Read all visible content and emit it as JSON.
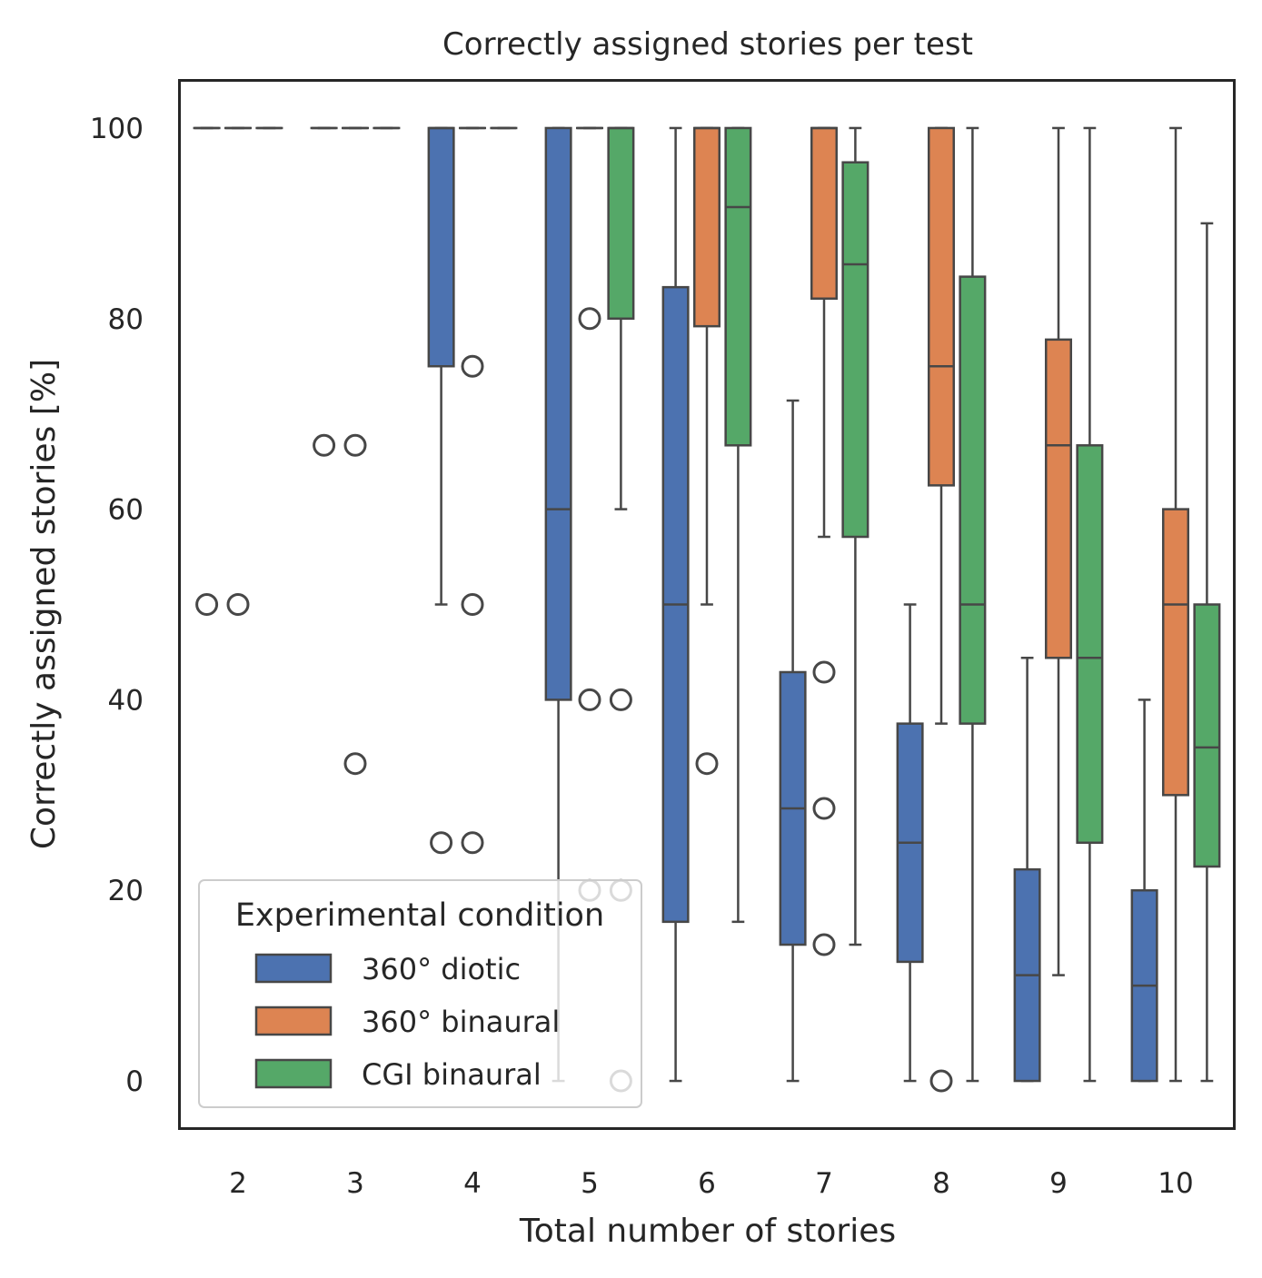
{
  "chart_data": {
    "type": "box",
    "title": "Correctly assigned stories per test",
    "xlabel": "Total number of stories",
    "ylabel": "Correctly assigned stories [%]",
    "ylim": [
      -5,
      105
    ],
    "yticks": [
      0,
      20,
      40,
      60,
      80,
      100
    ],
    "categories": [
      "2",
      "3",
      "4",
      "5",
      "6",
      "7",
      "8",
      "9",
      "10"
    ],
    "grid": false,
    "legend": {
      "title": "Experimental condition",
      "placement": "lower-left"
    },
    "series": [
      {
        "name": "360° diotic",
        "color": "#4c72b0",
        "boxes": [
          {
            "q1": 100,
            "median": 100,
            "q3": 100,
            "whislo": 100,
            "whishi": 100,
            "fliers": [
              50
            ]
          },
          {
            "q1": 100,
            "median": 100,
            "q3": 100,
            "whislo": 100,
            "whishi": 100,
            "fliers": [
              66.7
            ]
          },
          {
            "q1": 75,
            "median": 100,
            "q3": 100,
            "whislo": 50,
            "whishi": 100,
            "fliers": [
              25
            ]
          },
          {
            "q1": 40,
            "median": 60,
            "q3": 100,
            "whislo": 0,
            "whishi": 100,
            "fliers": []
          },
          {
            "q1": 16.7,
            "median": 50,
            "q3": 83.3,
            "whislo": 0,
            "whishi": 100,
            "fliers": []
          },
          {
            "q1": 14.3,
            "median": 28.6,
            "q3": 42.9,
            "whislo": 0,
            "whishi": 71.4,
            "fliers": []
          },
          {
            "q1": 12.5,
            "median": 25,
            "q3": 37.5,
            "whislo": 0,
            "whishi": 50,
            "fliers": []
          },
          {
            "q1": 0,
            "median": 11.1,
            "q3": 22.2,
            "whislo": 0,
            "whishi": 44.4,
            "fliers": []
          },
          {
            "q1": 0,
            "median": 10,
            "q3": 20,
            "whislo": 0,
            "whishi": 40,
            "fliers": []
          }
        ]
      },
      {
        "name": "360° binaural",
        "color": "#dd8452",
        "boxes": [
          {
            "q1": 100,
            "median": 100,
            "q3": 100,
            "whislo": 100,
            "whishi": 100,
            "fliers": [
              50
            ]
          },
          {
            "q1": 100,
            "median": 100,
            "q3": 100,
            "whislo": 100,
            "whishi": 100,
            "fliers": [
              66.7,
              33.3
            ]
          },
          {
            "q1": 100,
            "median": 100,
            "q3": 100,
            "whislo": 100,
            "whishi": 100,
            "fliers": [
              75,
              50,
              25
            ]
          },
          {
            "q1": 100,
            "median": 100,
            "q3": 100,
            "whislo": 100,
            "whishi": 100,
            "fliers": [
              80,
              40,
              20
            ]
          },
          {
            "q1": 79.2,
            "median": 100,
            "q3": 100,
            "whislo": 50,
            "whishi": 100,
            "fliers": [
              33.3
            ]
          },
          {
            "q1": 82.1,
            "median": 100,
            "q3": 100,
            "whislo": 57.1,
            "whishi": 100,
            "fliers": [
              42.9,
              28.6,
              14.3
            ]
          },
          {
            "q1": 62.5,
            "median": 75,
            "q3": 100,
            "whislo": 37.5,
            "whishi": 100,
            "fliers": [
              0
            ]
          },
          {
            "q1": 44.4,
            "median": 66.7,
            "q3": 77.8,
            "whislo": 11.1,
            "whishi": 100,
            "fliers": []
          },
          {
            "q1": 30,
            "median": 50,
            "q3": 60,
            "whislo": 0,
            "whishi": 100,
            "fliers": []
          }
        ]
      },
      {
        "name": "CGI binaural",
        "color": "#55a868",
        "boxes": [
          {
            "q1": 100,
            "median": 100,
            "q3": 100,
            "whislo": 100,
            "whishi": 100,
            "fliers": []
          },
          {
            "q1": 100,
            "median": 100,
            "q3": 100,
            "whislo": 100,
            "whishi": 100,
            "fliers": []
          },
          {
            "q1": 100,
            "median": 100,
            "q3": 100,
            "whislo": 100,
            "whishi": 100,
            "fliers": []
          },
          {
            "q1": 80,
            "median": 100,
            "q3": 100,
            "whislo": 60,
            "whishi": 100,
            "fliers": [
              40,
              20,
              0
            ]
          },
          {
            "q1": 66.7,
            "median": 91.7,
            "q3": 100,
            "whislo": 16.7,
            "whishi": 100,
            "fliers": []
          },
          {
            "q1": 57.1,
            "median": 85.7,
            "q3": 96.4,
            "whislo": 14.3,
            "whishi": 100,
            "fliers": []
          },
          {
            "q1": 37.5,
            "median": 50,
            "q3": 84.4,
            "whislo": 0,
            "whishi": 100,
            "fliers": []
          },
          {
            "q1": 25,
            "median": 44.4,
            "q3": 66.7,
            "whislo": 0,
            "whishi": 100,
            "fliers": []
          },
          {
            "q1": 22.5,
            "median": 35,
            "q3": 50,
            "whislo": 0,
            "whishi": 90,
            "fliers": []
          }
        ]
      }
    ]
  }
}
